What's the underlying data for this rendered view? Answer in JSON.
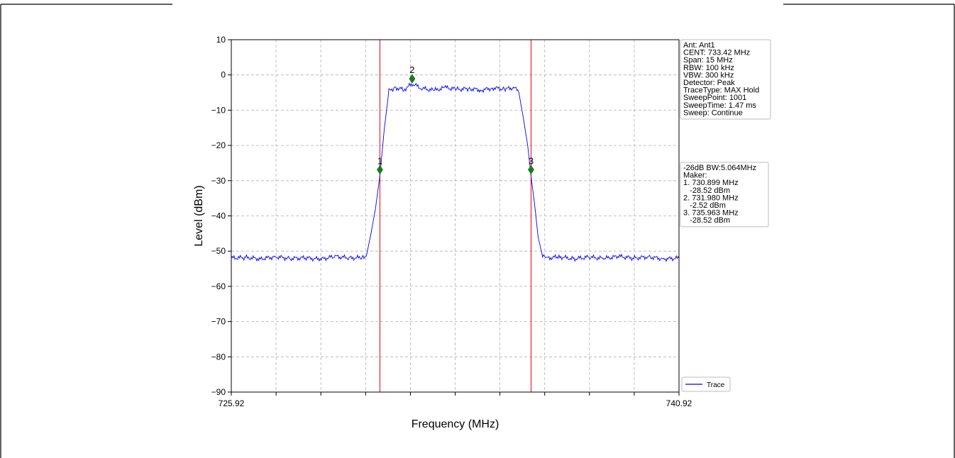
{
  "header": {
    "title": ""
  },
  "chart_data": {
    "type": "line",
    "xlabel": "Frequency (MHz)",
    "ylabel": "Level (dBm)",
    "xlim": [
      725.92,
      740.92
    ],
    "ylim": [
      -90,
      10
    ],
    "x_ticks": [
      725.92,
      740.92
    ],
    "x_tick_labels": [
      "725.92",
      "740.92"
    ],
    "y_ticks": [
      10,
      0,
      -10,
      -20,
      -30,
      -40,
      -50,
      -60,
      -70,
      -80,
      -90
    ],
    "y_tick_labels": [
      "10",
      "0",
      "−10",
      "−20",
      "−30",
      "−40",
      "−50",
      "−60",
      "−70",
      "−80",
      "−90"
    ],
    "grid": true,
    "legend": "bottom-right",
    "series": [
      {
        "name": "Trace",
        "color": "#0000ff",
        "x": [
          725.92,
          726.4,
          726.9,
          727.4,
          727.9,
          728.4,
          728.9,
          729.4,
          729.9,
          730.3,
          730.45,
          730.6,
          730.75,
          730.9,
          731.05,
          731.2,
          731.4,
          731.7,
          731.98,
          732.3,
          732.7,
          733.1,
          733.5,
          733.9,
          734.3,
          734.7,
          735.1,
          735.4,
          735.55,
          735.7,
          735.85,
          735.96,
          736.1,
          736.2,
          736.35,
          736.5,
          736.9,
          737.4,
          737.9,
          738.4,
          738.9,
          739.4,
          739.9,
          740.4,
          740.92
        ],
        "values": [
          -52,
          -51.8,
          -52.2,
          -51.6,
          -52.1,
          -51.9,
          -52.3,
          -51.5,
          -52,
          -51.8,
          -51.2,
          -45,
          -38,
          -28.5,
          -15,
          -4.5,
          -3.6,
          -4.2,
          -2.52,
          -3.8,
          -4.4,
          -3.6,
          -4.1,
          -3.9,
          -4.3,
          -3.7,
          -4,
          -3.6,
          -4.8,
          -12,
          -20,
          -28.5,
          -38,
          -46,
          -51.5,
          -52,
          -51.6,
          -52.2,
          -51.7,
          -52.1,
          -51.5,
          -52,
          -51.6,
          -52.2,
          -52
        ]
      }
    ],
    "vlines": [
      730.899,
      735.963
    ],
    "markers": [
      {
        "label": "1",
        "x": 730.899,
        "y": -26.9
      },
      {
        "label": "2",
        "x": 731.98,
        "y": -1.1
      },
      {
        "label": "3",
        "x": 735.963,
        "y": -26.9
      }
    ],
    "info_box": [
      "Ant: Ant1",
      "CENT: 733.42 MHz",
      "Span: 15 MHz",
      "RBW: 100 kHz",
      "VBW: 300 kHz",
      "Detector: Peak",
      "TraceType: MAX Hold",
      "SweepPoint: 1001",
      "SweepTime: 1.47 ms",
      "Sweep: Continue"
    ],
    "marker_box": [
      "-26dB BW:5.064MHz",
      "Maker:",
      "1. 730.899 MHz",
      "   -28.52 dBm",
      "2. 731.980 MHz",
      "   -2.52 dBm",
      "3. 735.963 MHz",
      "   -28.52 dBm"
    ],
    "colors": {
      "trace": "#0000ff",
      "vline": "#e8000b",
      "marker": "#1a7f1a",
      "grid": "#b0b0b0"
    }
  }
}
